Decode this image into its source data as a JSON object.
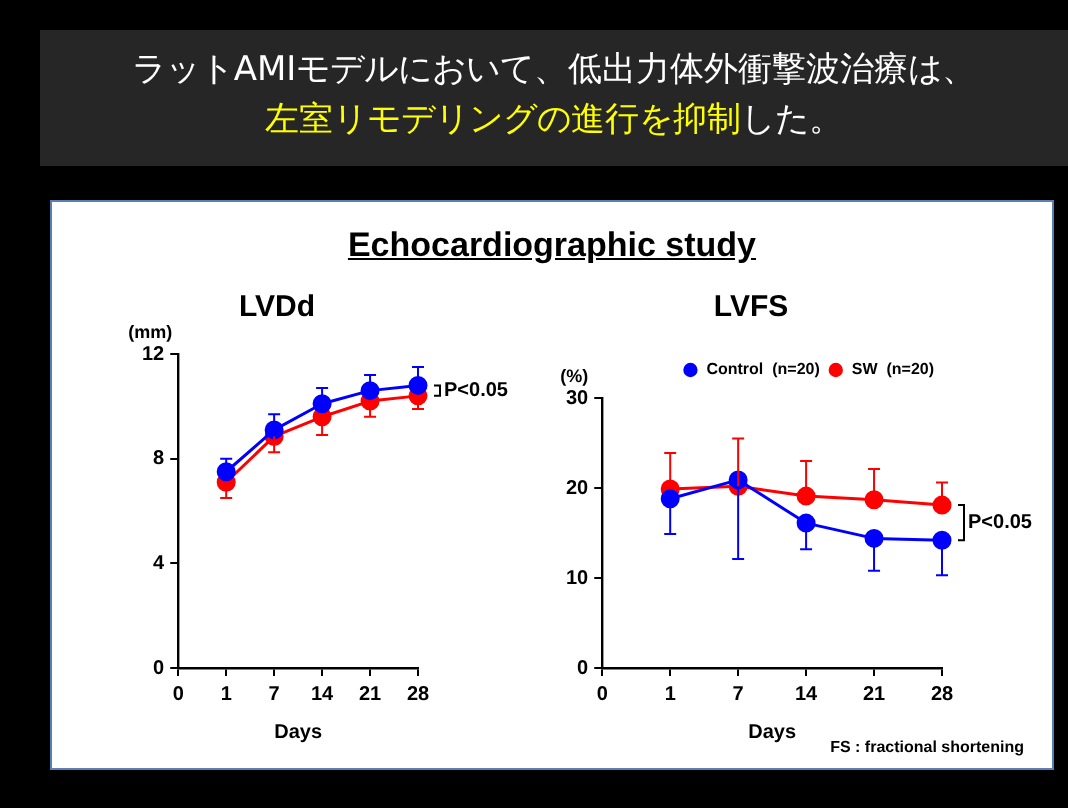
{
  "chart_data": [
    {
      "type": "line",
      "title": "LVDd",
      "ylabel": "(mm)",
      "xlabel": "Days",
      "categories": [
        "0",
        "1",
        "7",
        "14",
        "21",
        "28"
      ],
      "ylim": [
        0,
        12
      ],
      "yticks": [
        0,
        4,
        8,
        12
      ],
      "grid": false,
      "legend": false,
      "marker": "circle",
      "line_style": "solid",
      "series": [
        {
          "color": "#0000ff",
          "values": [
            null,
            7.5,
            9.1,
            10.1,
            10.6,
            10.8
          ],
          "errors": [
            null,
            [
              7.5,
              8.0
            ],
            [
              9.1,
              9.7
            ],
            [
              10.1,
              10.7
            ],
            [
              10.6,
              11.2
            ],
            [
              10.8,
              11.5
            ]
          ]
        },
        {
          "color": "#ff0000",
          "values": [
            null,
            7.1,
            8.85,
            9.6,
            10.2,
            10.4
          ],
          "errors": [
            null,
            [
              6.5,
              7.1
            ],
            [
              8.25,
              8.85
            ],
            [
              8.9,
              9.6
            ],
            [
              9.6,
              10.2
            ],
            [
              9.9,
              10.4
            ]
          ]
        }
      ],
      "annotations": [
        "ラットAMIモデルにおいて、低出力体外衝撃波治療は、",
        "左室リモデリングの進行を抑制",
        "した。",
        "Echocardiographic study",
        {
          "text": "P<0.05",
          "x": "28",
          "y": 10.6
        }
      ]
    },
    {
      "type": "line",
      "title": "LVFS",
      "ylabel": "(%)",
      "xlabel": "Days",
      "categories": [
        "0",
        "1",
        "7",
        "14",
        "21",
        "28"
      ],
      "ylim": [
        0,
        30
      ],
      "yticks": [
        0,
        10,
        20,
        30
      ],
      "grid": false,
      "legend": "top right",
      "marker": "circle",
      "line_style": "solid",
      "series": [
        {
          "name": "Control  (n=20)",
          "color": "#0000ff",
          "values": [
            null,
            18.8,
            20.9,
            16.1,
            14.4,
            14.2
          ],
          "errors": [
            null,
            [
              14.9,
              18.8
            ],
            [
              12.1,
              20.9
            ],
            [
              13.2,
              16.1
            ],
            [
              10.8,
              14.4
            ],
            [
              10.3,
              14.2
            ]
          ]
        },
        {
          "name": "SW  (n=20)",
          "color": "#ff0000",
          "values": [
            null,
            19.9,
            20.2,
            19.1,
            18.7,
            18.1
          ],
          "errors": [
            null,
            [
              19.9,
              23.9
            ],
            [
              20.2,
              25.5
            ],
            [
              19.1,
              23.0
            ],
            [
              18.7,
              22.1
            ],
            [
              18.1,
              20.6
            ]
          ]
        }
      ],
      "annotations": [
        {
          "text": "P<0.05",
          "x": "28",
          "y": 16.2
        },
        "FS : fractional shortening"
      ]
    }
  ]
}
